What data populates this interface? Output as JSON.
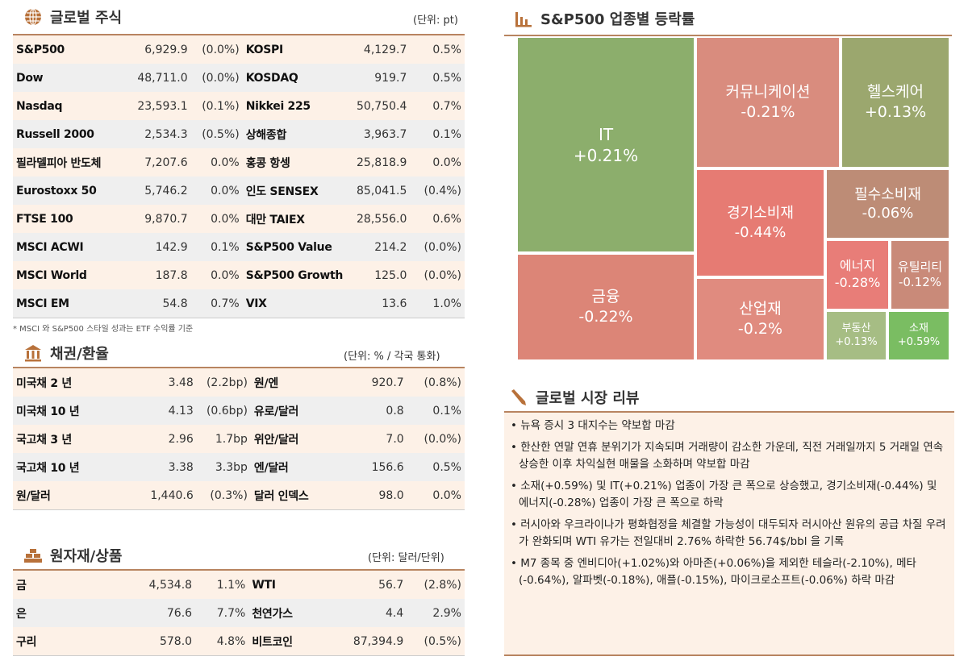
{
  "stocks": {
    "title": "글로벌 주식",
    "unit": "(단위: pt)",
    "note": "* MSCI 와 S&P500 스타일 성과는 ETF 수익률 기준",
    "rows": [
      [
        "S&P500",
        "6,929.9",
        "(0.0%)",
        "KOSPI",
        "4,129.7",
        "0.5%"
      ],
      [
        "Dow",
        "48,711.0",
        "(0.0%)",
        "KOSDAQ",
        "919.7",
        "0.5%"
      ],
      [
        "Nasdaq",
        "23,593.1",
        "(0.1%)",
        "Nikkei 225",
        "50,750.4",
        "0.7%"
      ],
      [
        "Russell 2000",
        "2,534.3",
        "(0.5%)",
        "상해종합",
        "3,963.7",
        "0.1%"
      ],
      [
        "필라델피아 반도체",
        "7,207.6",
        "0.0%",
        "홍콩 항셍",
        "25,818.9",
        "0.0%"
      ],
      [
        "Eurostoxx 50",
        "5,746.2",
        "0.0%",
        "인도 SENSEX",
        "85,041.5",
        "(0.4%)"
      ],
      [
        "FTSE 100",
        "9,870.7",
        "0.0%",
        "대만 TAIEX",
        "28,556.0",
        "0.6%"
      ],
      [
        "MSCI ACWI",
        "142.9",
        "0.1%",
        "S&P500 Value",
        "214.2",
        "(0.0%)"
      ],
      [
        "MSCI World",
        "187.8",
        "0.0%",
        "S&P500 Growth",
        "125.0",
        "(0.0%)"
      ],
      [
        "MSCI EM",
        "54.8",
        "0.7%",
        "VIX",
        "13.6",
        "1.0%"
      ]
    ]
  },
  "bonds": {
    "title": "채권/환율",
    "unit": "(단위: % / 각국 통화)",
    "rows": [
      [
        "미국채 2 년",
        "3.48",
        "(2.2bp)",
        "원/엔",
        "920.7",
        "(0.8%)"
      ],
      [
        "미국채 10 년",
        "4.13",
        "(0.6bp)",
        "유로/달러",
        "0.8",
        "0.1%"
      ],
      [
        "국고채 3 년",
        "2.96",
        "1.7bp",
        "위안/달러",
        "7.0",
        "(0.0%)"
      ],
      [
        "국고채 10 년",
        "3.38",
        "3.3bp",
        "엔/달러",
        "156.6",
        "0.5%"
      ],
      [
        "원/달러",
        "1,440.6",
        "(0.3%)",
        "달러 인덱스",
        "98.0",
        "0.0%"
      ]
    ]
  },
  "commodities": {
    "title": "원자재/상품",
    "unit": "(단위: 달러/단위)",
    "rows": [
      [
        "금",
        "4,534.8",
        "1.1%",
        "WTI",
        "56.7",
        "(2.8%)"
      ],
      [
        "은",
        "76.6",
        "7.7%",
        "천연가스",
        "4.4",
        "2.9%"
      ],
      [
        "구리",
        "578.0",
        "4.8%",
        "비트코인",
        "87,394.9",
        "(0.5%)"
      ]
    ]
  },
  "treemap": {
    "title": "S&P500 업종별 등락률",
    "cells": [
      {
        "name": "IT",
        "value": "+0.21%",
        "color": "#8cae6c"
      },
      {
        "name": "금융",
        "value": "-0.22%",
        "color": "#dc8577"
      },
      {
        "name": "커뮤니케이션",
        "value": "-0.21%",
        "color": "#d98c7e"
      },
      {
        "name": "헬스케어",
        "value": "+0.13%",
        "color": "#9ba76e"
      },
      {
        "name": "경기소비재",
        "value": "-0.44%",
        "color": "#e67b73"
      },
      {
        "name": "필수소비재",
        "value": "-0.06%",
        "color": "#bd8c76"
      },
      {
        "name": "산업재",
        "value": "-0.2%",
        "color": "#e08b7f"
      },
      {
        "name": "에너지",
        "value": "-0.28%",
        "color": "#e87d78"
      },
      {
        "name": "유틸리티",
        "value": "-0.12%",
        "color": "#c98a79"
      },
      {
        "name": "부동산",
        "value": "+0.13%",
        "color": "#a6bd84"
      },
      {
        "name": "소재",
        "value": "+0.59%",
        "color": "#7abd62"
      }
    ]
  },
  "review": {
    "title": "글로벌 시장 리뷰",
    "items": [
      "• 뉴욕 증시 3 대지수는 약보합 마감",
      "• 한산한 연말 연휴 분위기가 지속되며 거래량이 감소한 가운데, 직전 거래일까지 5 거래일 연속 상승한 이후 차익실현 매물을 소화하며 약보합 마감",
      "• 소재(+0.59%) 및 IT(+0.21%) 업종이 가장 큰 폭으로 상승했고, 경기소비재(-0.44%) 및 에너지(-0.28%) 업종이 가장 큰 폭으로 하락",
      "• 러시아와 우크라이나가 평화협정을 체결할 가능성이 대두되자 러시아산 원유의 공급 차질 우려가 완화되며 WTI 유가는 전일대비 2.76% 하락한 56.74$/bbl 을 기록",
      "• M7 종목 중 엔비디아(+1.02%)와 아마존(+0.06%)을 제외한 테슬라(-2.10%), 메타(-0.64%), 알파벳(-0.18%), 애플(-0.15%), 마이크로소프트(-0.06%) 하락 마감"
    ]
  },
  "accent": "#b8713a"
}
